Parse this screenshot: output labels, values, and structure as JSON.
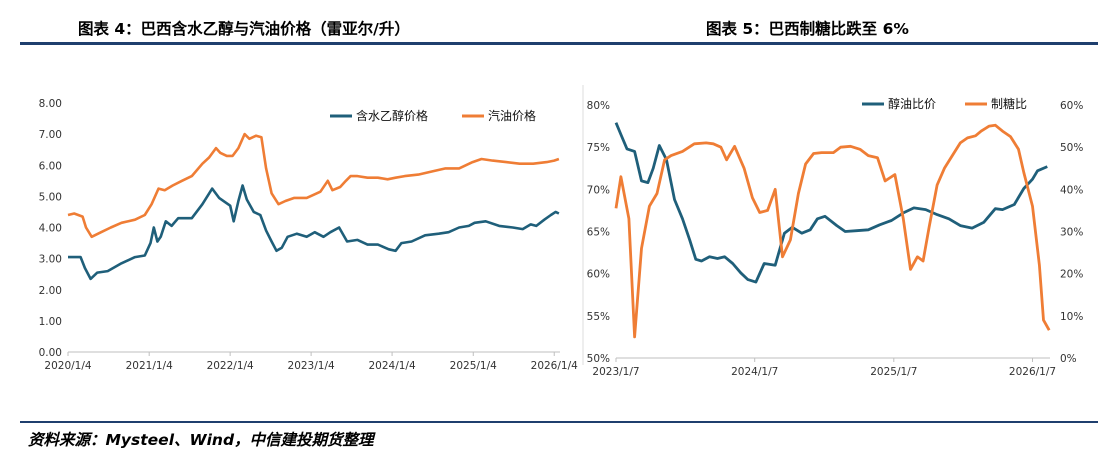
{
  "header": {
    "left_title": "图表 4：巴西含水乙醇与汽油价格（雷亚尔/升）",
    "right_title": "图表 5：巴西制糖比跌至 6%"
  },
  "footer": {
    "source": "资料来源：Mysteel、Wind，中信建投期货整理"
  },
  "colors": {
    "blue": "#1f5f7a",
    "orange": "#ef7d35",
    "rule": "#1f3f6e"
  },
  "chart_data": [
    {
      "type": "line",
      "ylim": [
        0,
        8
      ],
      "y_ticks": [
        "0.00",
        "1.00",
        "2.00",
        "3.00",
        "4.00",
        "5.00",
        "6.00",
        "7.00",
        "8.00"
      ],
      "x_ticks": [
        "2020/1/4",
        "2021/1/4",
        "2022/1/4",
        "2023/1/4",
        "2024/1/4",
        "2025/1/4",
        "2026/1/4"
      ],
      "legend_position": "top-right",
      "series": [
        {
          "name": "含水乙醇价格",
          "color": "#1f5f7a",
          "points": [
            [
              "2020-01-04",
              3.05
            ],
            [
              "2020-03-01",
              3.05
            ],
            [
              "2020-03-20",
              2.7
            ],
            [
              "2020-04-15",
              2.35
            ],
            [
              "2020-05-15",
              2.55
            ],
            [
              "2020-07-01",
              2.6
            ],
            [
              "2020-09-01",
              2.85
            ],
            [
              "2020-11-01",
              3.05
            ],
            [
              "2020-12-15",
              3.1
            ],
            [
              "2021-01-10",
              3.5
            ],
            [
              "2021-01-25",
              4.0
            ],
            [
              "2021-02-10",
              3.55
            ],
            [
              "2021-02-25",
              3.7
            ],
            [
              "2021-03-20",
              4.2
            ],
            [
              "2021-04-15",
              4.05
            ],
            [
              "2021-05-15",
              4.3
            ],
            [
              "2021-07-15",
              4.3
            ],
            [
              "2021-09-01",
              4.75
            ],
            [
              "2021-10-15",
              5.25
            ],
            [
              "2021-11-15",
              4.95
            ],
            [
              "2021-12-15",
              4.8
            ],
            [
              "2022-01-04",
              4.7
            ],
            [
              "2022-01-20",
              4.2
            ],
            [
              "2022-02-10",
              4.85
            ],
            [
              "2022-03-01",
              5.35
            ],
            [
              "2022-03-20",
              4.9
            ],
            [
              "2022-04-20",
              4.5
            ],
            [
              "2022-05-20",
              4.4
            ],
            [
              "2022-06-15",
              3.9
            ],
            [
              "2022-07-10",
              3.55
            ],
            [
              "2022-08-01",
              3.25
            ],
            [
              "2022-08-25",
              3.35
            ],
            [
              "2022-09-20",
              3.7
            ],
            [
              "2022-11-01",
              3.8
            ],
            [
              "2022-12-15",
              3.7
            ],
            [
              "2023-01-20",
              3.85
            ],
            [
              "2023-03-01",
              3.7
            ],
            [
              "2023-04-01",
              3.85
            ],
            [
              "2023-05-10",
              4.0
            ],
            [
              "2023-06-15",
              3.55
            ],
            [
              "2023-08-01",
              3.6
            ],
            [
              "2023-09-15",
              3.45
            ],
            [
              "2023-11-01",
              3.45
            ],
            [
              "2023-12-20",
              3.3
            ],
            [
              "2024-01-20",
              3.25
            ],
            [
              "2024-02-15",
              3.5
            ],
            [
              "2024-04-01",
              3.55
            ],
            [
              "2024-06-01",
              3.75
            ],
            [
              "2024-08-01",
              3.8
            ],
            [
              "2024-09-15",
              3.85
            ],
            [
              "2024-11-01",
              4.0
            ],
            [
              "2024-12-15",
              4.05
            ],
            [
              "2025-01-10",
              4.15
            ],
            [
              "2025-03-01",
              4.2
            ],
            [
              "2025-05-01",
              4.05
            ],
            [
              "2025-07-01",
              4.0
            ],
            [
              "2025-08-15",
              3.95
            ],
            [
              "2025-09-20",
              4.1
            ],
            [
              "2025-10-15",
              4.05
            ],
            [
              "2025-11-20",
              4.25
            ],
            [
              "2025-12-20",
              4.4
            ],
            [
              "2026-01-10",
              4.5
            ],
            [
              "2026-01-25",
              4.45
            ]
          ]
        },
        {
          "name": "汽油价格",
          "color": "#ef7d35",
          "points": [
            [
              "2020-01-04",
              4.4
            ],
            [
              "2020-02-01",
              4.45
            ],
            [
              "2020-03-10",
              4.35
            ],
            [
              "2020-03-25",
              4.0
            ],
            [
              "2020-04-20",
              3.7
            ],
            [
              "2020-06-01",
              3.85
            ],
            [
              "2020-07-15",
              4.0
            ],
            [
              "2020-09-01",
              4.15
            ],
            [
              "2020-11-01",
              4.25
            ],
            [
              "2020-12-15",
              4.4
            ],
            [
              "2021-01-15",
              4.75
            ],
            [
              "2021-02-15",
              5.25
            ],
            [
              "2021-03-15",
              5.2
            ],
            [
              "2021-04-20",
              5.35
            ],
            [
              "2021-06-01",
              5.5
            ],
            [
              "2021-07-15",
              5.65
            ],
            [
              "2021-09-01",
              6.05
            ],
            [
              "2021-10-01",
              6.25
            ],
            [
              "2021-11-01",
              6.55
            ],
            [
              "2021-11-20",
              6.4
            ],
            [
              "2021-12-20",
              6.3
            ],
            [
              "2022-01-15",
              6.3
            ],
            [
              "2022-02-10",
              6.55
            ],
            [
              "2022-03-10",
              7.0
            ],
            [
              "2022-04-01",
              6.85
            ],
            [
              "2022-05-01",
              6.95
            ],
            [
              "2022-05-25",
              6.9
            ],
            [
              "2022-06-15",
              5.9
            ],
            [
              "2022-07-10",
              5.1
            ],
            [
              "2022-08-10",
              4.75
            ],
            [
              "2022-09-10",
              4.85
            ],
            [
              "2022-10-20",
              4.95
            ],
            [
              "2022-12-15",
              4.95
            ],
            [
              "2023-01-15",
              5.05
            ],
            [
              "2023-02-15",
              5.15
            ],
            [
              "2023-03-20",
              5.5
            ],
            [
              "2023-04-10",
              5.2
            ],
            [
              "2023-05-15",
              5.3
            ],
            [
              "2023-06-10",
              5.5
            ],
            [
              "2023-07-01",
              5.65
            ],
            [
              "2023-08-01",
              5.65
            ],
            [
              "2023-09-15",
              5.6
            ],
            [
              "2023-11-01",
              5.6
            ],
            [
              "2023-12-15",
              5.55
            ],
            [
              "2024-01-20",
              5.6
            ],
            [
              "2024-03-01",
              5.65
            ],
            [
              "2024-05-01",
              5.7
            ],
            [
              "2024-07-01",
              5.8
            ],
            [
              "2024-09-01",
              5.9
            ],
            [
              "2024-11-01",
              5.9
            ],
            [
              "2025-01-01",
              6.1
            ],
            [
              "2025-02-10",
              6.2
            ],
            [
              "2025-04-01",
              6.15
            ],
            [
              "2025-06-01",
              6.1
            ],
            [
              "2025-08-01",
              6.05
            ],
            [
              "2025-10-01",
              6.05
            ],
            [
              "2025-12-01",
              6.1
            ],
            [
              "2026-01-04",
              6.15
            ],
            [
              "2026-01-25",
              6.2
            ]
          ]
        }
      ]
    },
    {
      "type": "line",
      "ylim_left": [
        0.5,
        0.8
      ],
      "ylim_right": [
        0,
        0.6
      ],
      "y_ticks_left": [
        "50%",
        "55%",
        "60%",
        "65%",
        "70%",
        "75%",
        "80%"
      ],
      "y_ticks_right": [
        "0%",
        "10%",
        "20%",
        "30%",
        "40%",
        "50%",
        "60%"
      ],
      "x_ticks": [
        "2023/1/7",
        "2024/1/7",
        "2025/1/7",
        "2026/1/7"
      ],
      "legend_position": "top-right",
      "series": [
        {
          "name": "醇油比价",
          "color": "#1f5f7a",
          "axis": "left",
          "points": [
            [
              "2023-01-07",
              0.779
            ],
            [
              "2023-01-20",
              0.765
            ],
            [
              "2023-02-05",
              0.748
            ],
            [
              "2023-02-25",
              0.745
            ],
            [
              "2023-03-15",
              0.71
            ],
            [
              "2023-04-01",
              0.708
            ],
            [
              "2023-04-15",
              0.725
            ],
            [
              "2023-05-01",
              0.752
            ],
            [
              "2023-05-20",
              0.735
            ],
            [
              "2023-06-10",
              0.688
            ],
            [
              "2023-07-01",
              0.665
            ],
            [
              "2023-07-20",
              0.64
            ],
            [
              "2023-08-05",
              0.617
            ],
            [
              "2023-08-20",
              0.615
            ],
            [
              "2023-09-10",
              0.62
            ],
            [
              "2023-10-01",
              0.618
            ],
            [
              "2023-10-20",
              0.62
            ],
            [
              "2023-11-10",
              0.612
            ],
            [
              "2023-12-01",
              0.601
            ],
            [
              "2023-12-20",
              0.593
            ],
            [
              "2024-01-10",
              0.59
            ],
            [
              "2024-02-01",
              0.612
            ],
            [
              "2024-03-01",
              0.61
            ],
            [
              "2024-03-25",
              0.648
            ],
            [
              "2024-04-15",
              0.655
            ],
            [
              "2024-05-10",
              0.648
            ],
            [
              "2024-06-01",
              0.652
            ],
            [
              "2024-06-20",
              0.665
            ],
            [
              "2024-07-10",
              0.668
            ],
            [
              "2024-08-10",
              0.657
            ],
            [
              "2024-09-01",
              0.65
            ],
            [
              "2024-10-01",
              0.651
            ],
            [
              "2024-11-01",
              0.652
            ],
            [
              "2024-12-01",
              0.658
            ],
            [
              "2025-01-01",
              0.663
            ],
            [
              "2025-02-01",
              0.672
            ],
            [
              "2025-03-01",
              0.678
            ],
            [
              "2025-04-01",
              0.676
            ],
            [
              "2025-05-01",
              0.67
            ],
            [
              "2025-06-01",
              0.665
            ],
            [
              "2025-07-01",
              0.657
            ],
            [
              "2025-08-01",
              0.654
            ],
            [
              "2025-09-01",
              0.661
            ],
            [
              "2025-10-01",
              0.677
            ],
            [
              "2025-10-20",
              0.676
            ],
            [
              "2025-11-20",
              0.682
            ],
            [
              "2025-12-15",
              0.701
            ],
            [
              "2026-01-07",
              0.712
            ],
            [
              "2026-01-20",
              0.722
            ],
            [
              "2026-02-15",
              0.727
            ]
          ]
        },
        {
          "name": "制糖比",
          "color": "#ef7d35",
          "axis": "right",
          "points": [
            [
              "2023-01-07",
              0.355
            ],
            [
              "2023-01-20",
              0.43
            ],
            [
              "2023-02-10",
              0.33
            ],
            [
              "2023-02-25",
              0.05
            ],
            [
              "2023-03-15",
              0.26
            ],
            [
              "2023-04-05",
              0.36
            ],
            [
              "2023-04-25",
              0.39
            ],
            [
              "2023-05-15",
              0.47
            ],
            [
              "2023-06-01",
              0.48
            ],
            [
              "2023-07-01",
              0.49
            ],
            [
              "2023-08-01",
              0.508
            ],
            [
              "2023-09-01",
              0.51
            ],
            [
              "2023-09-20",
              0.508
            ],
            [
              "2023-10-10",
              0.5
            ],
            [
              "2023-10-25",
              0.47
            ],
            [
              "2023-11-15",
              0.502
            ],
            [
              "2023-12-10",
              0.45
            ],
            [
              "2024-01-01",
              0.38
            ],
            [
              "2024-01-20",
              0.345
            ],
            [
              "2024-02-10",
              0.35
            ],
            [
              "2024-03-01",
              0.4
            ],
            [
              "2024-03-20",
              0.24
            ],
            [
              "2024-04-10",
              0.28
            ],
            [
              "2024-05-01",
              0.39
            ],
            [
              "2024-05-20",
              0.46
            ],
            [
              "2024-06-10",
              0.485
            ],
            [
              "2024-07-01",
              0.487
            ],
            [
              "2024-08-01",
              0.487
            ],
            [
              "2024-08-20",
              0.5
            ],
            [
              "2024-09-15",
              0.502
            ],
            [
              "2024-10-10",
              0.495
            ],
            [
              "2024-11-01",
              0.48
            ],
            [
              "2024-11-25",
              0.475
            ],
            [
              "2024-12-15",
              0.42
            ],
            [
              "2025-01-10",
              0.435
            ],
            [
              "2025-02-01",
              0.33
            ],
            [
              "2025-02-20",
              0.21
            ],
            [
              "2025-03-10",
              0.24
            ],
            [
              "2025-03-25",
              0.23
            ],
            [
              "2025-04-10",
              0.31
            ],
            [
              "2025-05-01",
              0.41
            ],
            [
              "2025-05-20",
              0.45
            ],
            [
              "2025-06-10",
              0.48
            ],
            [
              "2025-07-01",
              0.51
            ],
            [
              "2025-07-20",
              0.522
            ],
            [
              "2025-08-10",
              0.527
            ],
            [
              "2025-08-25",
              0.538
            ],
            [
              "2025-09-15",
              0.55
            ],
            [
              "2025-10-01",
              0.552
            ],
            [
              "2025-10-20",
              0.538
            ],
            [
              "2025-11-10",
              0.525
            ],
            [
              "2025-12-01",
              0.495
            ],
            [
              "2025-12-15",
              0.44
            ],
            [
              "2026-01-07",
              0.36
            ],
            [
              "2026-01-25",
              0.22
            ],
            [
              "2026-02-05",
              0.09
            ],
            [
              "2026-02-20",
              0.066
            ]
          ]
        }
      ]
    }
  ]
}
